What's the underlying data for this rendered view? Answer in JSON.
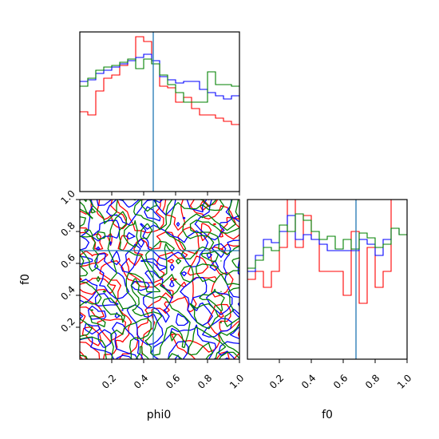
{
  "chart_data": {
    "type": "corner",
    "parameters": [
      "phi0",
      "f0"
    ],
    "truth": {
      "phi0": 0.46,
      "f0": 0.68
    },
    "series_colors": [
      "#ff0000",
      "#0000ff",
      "#008000"
    ],
    "truth_color": "#1f77b4",
    "hist_phi0": {
      "xlim": [
        0,
        1
      ],
      "bins": 20,
      "series": [
        {
          "color": "#ff0000",
          "values": [
            0.5,
            0.48,
            0.63,
            0.71,
            0.73,
            0.79,
            0.82,
            0.97,
            0.94,
            0.8,
            0.66,
            0.65,
            0.56,
            0.59,
            0.52,
            0.48,
            0.48,
            0.46,
            0.44,
            0.42
          ]
        },
        {
          "color": "#0000ff",
          "values": [
            0.69,
            0.7,
            0.74,
            0.76,
            0.78,
            0.8,
            0.82,
            0.84,
            0.86,
            0.82,
            0.72,
            0.7,
            0.68,
            0.69,
            0.69,
            0.64,
            0.62,
            0.6,
            0.58,
            0.6
          ]
        },
        {
          "color": "#008000",
          "values": [
            0.66,
            0.71,
            0.76,
            0.78,
            0.79,
            0.81,
            0.83,
            0.77,
            0.83,
            0.8,
            0.73,
            0.67,
            0.62,
            0.56,
            0.56,
            0.56,
            0.75,
            0.67,
            0.67,
            0.66
          ]
        }
      ]
    },
    "hist_f0": {
      "xlim": [
        0,
        1
      ],
      "bins": 20,
      "series": [
        {
          "color": "#ff0000",
          "values": [
            0.5,
            0.55,
            0.45,
            0.55,
            0.7,
            1.05,
            0.7,
            0.9,
            0.75,
            0.55,
            0.55,
            0.55,
            0.4,
            0.8,
            0.35,
            0.7,
            0.45,
            0.55,
            1.0,
            1.05
          ]
        },
        {
          "color": "#0000ff",
          "values": [
            0.55,
            0.65,
            0.75,
            0.73,
            0.8,
            0.9,
            0.75,
            0.78,
            0.75,
            0.72,
            0.68,
            0.68,
            0.68,
            0.68,
            0.75,
            0.72,
            0.65,
            0.75,
            0.82,
            0.78
          ]
        },
        {
          "color": "#008000",
          "values": [
            0.57,
            0.62,
            0.7,
            0.68,
            0.84,
            0.8,
            0.91,
            0.87,
            0.8,
            0.75,
            0.77,
            0.69,
            0.75,
            0.69,
            0.79,
            0.76,
            0.7,
            0.72,
            0.82,
            0.78
          ]
        }
      ]
    },
    "contour_seeds": [
      11,
      23,
      37
    ],
    "axes": {
      "x_label": "phi0",
      "y_label": "f0",
      "x2_label": "f0",
      "ticks_x": [
        "0.2",
        "0.4",
        "0.6",
        "0.8",
        "1.0"
      ],
      "ticks_y": [
        "0.2",
        "0.4",
        "0.6",
        "0.8",
        "1.0"
      ],
      "ticks_x2": [
        "0.2",
        "0.4",
        "0.6",
        "0.8",
        "1.0"
      ]
    }
  }
}
